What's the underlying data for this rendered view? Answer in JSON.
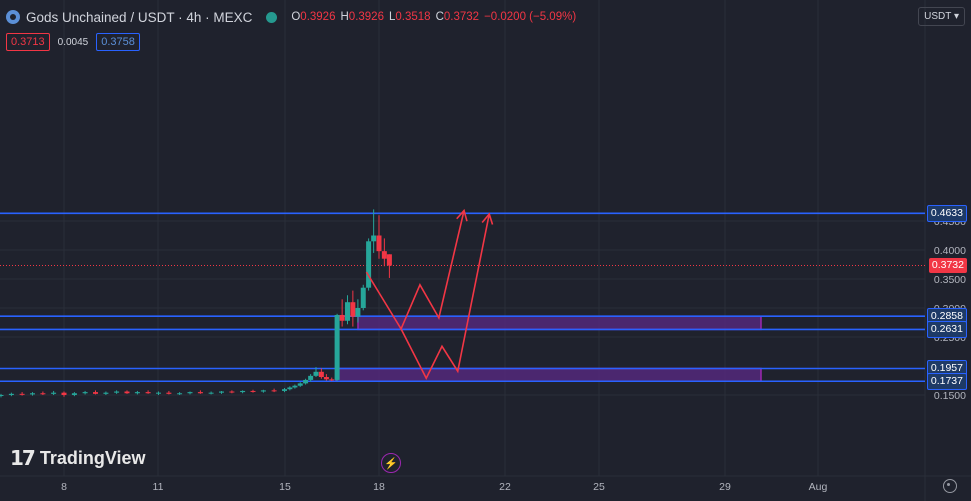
{
  "header": {
    "title": "Gods Unchained / USDT · 4h · MEXC",
    "ohlc": [
      {
        "k": "O",
        "v": "0.3926"
      },
      {
        "k": "H",
        "v": "0.3926"
      },
      {
        "k": "L",
        "v": "0.3518"
      },
      {
        "k": "C",
        "v": "0.3732"
      }
    ],
    "change": "−0.0200 (−5.09%)",
    "bid": "0.3713",
    "spread": "0.0045",
    "ask": "0.3758",
    "currency": "USDT"
  },
  "branding": {
    "logo_text": "TradingView"
  },
  "colors": {
    "background": "#1f222d",
    "up": "#26a69a",
    "down": "#f23645",
    "level_line": "#2962ff",
    "zone_fill": "#5b2a86",
    "arrow": "#f23645"
  },
  "chart_data": {
    "type": "candlestick",
    "symbol": "Gods Unchained / USDT",
    "interval": "4h",
    "exchange": "MEXC",
    "x_ticks": [
      "8",
      "11",
      "15",
      "18",
      "22",
      "25",
      "29",
      "Aug"
    ],
    "y_ticks": [
      "0.1500",
      "0.2500",
      "0.3000",
      "0.3500",
      "0.4000",
      "0.4500"
    ],
    "ylim": [
      0.12,
      0.49
    ],
    "last_price": 0.3732,
    "horizontal_levels": [
      0.4633,
      0.2858,
      0.2631,
      0.1957,
      0.1737
    ],
    "level_labels": [
      "0.4633",
      "0.2858",
      "0.2631",
      "0.1957",
      "0.1737"
    ],
    "last_price_label": "0.3732",
    "zones": [
      {
        "top": 0.2858,
        "bottom": 0.2631
      },
      {
        "top": 0.1957,
        "bottom": 0.1737
      }
    ],
    "projection_paths": [
      [
        [
          17.6,
          0.362
        ],
        [
          18.7,
          0.264
        ],
        [
          19.3,
          0.34
        ],
        [
          19.9,
          0.283
        ],
        [
          20.7,
          0.468
        ]
      ],
      [
        [
          18.7,
          0.264
        ],
        [
          19.5,
          0.179
        ],
        [
          20.0,
          0.234
        ],
        [
          20.5,
          0.191
        ],
        [
          21.5,
          0.462
        ]
      ]
    ],
    "candles": [
      {
        "d": 5.0,
        "o": 0.143,
        "h": 0.146,
        "l": 0.139,
        "c": 0.145
      },
      {
        "d": 5.33,
        "o": 0.145,
        "h": 0.149,
        "l": 0.142,
        "c": 0.147
      },
      {
        "d": 5.67,
        "o": 0.147,
        "h": 0.151,
        "l": 0.145,
        "c": 0.149
      },
      {
        "d": 6.0,
        "o": 0.149,
        "h": 0.152,
        "l": 0.146,
        "c": 0.15
      },
      {
        "d": 6.33,
        "o": 0.15,
        "h": 0.154,
        "l": 0.148,
        "c": 0.152
      },
      {
        "d": 6.67,
        "o": 0.152,
        "h": 0.155,
        "l": 0.149,
        "c": 0.151
      },
      {
        "d": 7.0,
        "o": 0.151,
        "h": 0.155,
        "l": 0.149,
        "c": 0.153
      },
      {
        "d": 7.33,
        "o": 0.153,
        "h": 0.156,
        "l": 0.15,
        "c": 0.152
      },
      {
        "d": 7.67,
        "o": 0.152,
        "h": 0.157,
        "l": 0.15,
        "c": 0.154
      },
      {
        "d": 8.0,
        "o": 0.154,
        "h": 0.156,
        "l": 0.147,
        "c": 0.15
      },
      {
        "d": 8.33,
        "o": 0.15,
        "h": 0.155,
        "l": 0.148,
        "c": 0.153
      },
      {
        "d": 8.67,
        "o": 0.153,
        "h": 0.157,
        "l": 0.151,
        "c": 0.155
      },
      {
        "d": 9.0,
        "o": 0.155,
        "h": 0.158,
        "l": 0.151,
        "c": 0.152
      },
      {
        "d": 9.33,
        "o": 0.152,
        "h": 0.156,
        "l": 0.15,
        "c": 0.154
      },
      {
        "d": 9.67,
        "o": 0.154,
        "h": 0.158,
        "l": 0.152,
        "c": 0.156
      },
      {
        "d": 10.0,
        "o": 0.156,
        "h": 0.158,
        "l": 0.152,
        "c": 0.153
      },
      {
        "d": 10.33,
        "o": 0.153,
        "h": 0.157,
        "l": 0.151,
        "c": 0.155
      },
      {
        "d": 10.67,
        "o": 0.155,
        "h": 0.158,
        "l": 0.152,
        "c": 0.153
      },
      {
        "d": 11.0,
        "o": 0.153,
        "h": 0.156,
        "l": 0.15,
        "c": 0.154
      },
      {
        "d": 11.33,
        "o": 0.154,
        "h": 0.157,
        "l": 0.151,
        "c": 0.152
      },
      {
        "d": 11.67,
        "o": 0.152,
        "h": 0.155,
        "l": 0.15,
        "c": 0.153
      },
      {
        "d": 12.0,
        "o": 0.153,
        "h": 0.156,
        "l": 0.151,
        "c": 0.155
      },
      {
        "d": 12.33,
        "o": 0.155,
        "h": 0.158,
        "l": 0.152,
        "c": 0.153
      },
      {
        "d": 12.67,
        "o": 0.153,
        "h": 0.156,
        "l": 0.151,
        "c": 0.154
      },
      {
        "d": 13.0,
        "o": 0.154,
        "h": 0.157,
        "l": 0.152,
        "c": 0.156
      },
      {
        "d": 13.33,
        "o": 0.156,
        "h": 0.158,
        "l": 0.153,
        "c": 0.155
      },
      {
        "d": 13.67,
        "o": 0.155,
        "h": 0.158,
        "l": 0.153,
        "c": 0.157
      },
      {
        "d": 14.0,
        "o": 0.157,
        "h": 0.159,
        "l": 0.154,
        "c": 0.156
      },
      {
        "d": 14.33,
        "o": 0.156,
        "h": 0.159,
        "l": 0.154,
        "c": 0.158
      },
      {
        "d": 14.67,
        "o": 0.158,
        "h": 0.161,
        "l": 0.155,
        "c": 0.157
      },
      {
        "d": 15.0,
        "o": 0.157,
        "h": 0.162,
        "l": 0.155,
        "c": 0.16
      },
      {
        "d": 15.17,
        "o": 0.16,
        "h": 0.165,
        "l": 0.158,
        "c": 0.163
      },
      {
        "d": 15.33,
        "o": 0.163,
        "h": 0.168,
        "l": 0.161,
        "c": 0.166
      },
      {
        "d": 15.5,
        "o": 0.166,
        "h": 0.172,
        "l": 0.164,
        "c": 0.17
      },
      {
        "d": 15.67,
        "o": 0.17,
        "h": 0.178,
        "l": 0.168,
        "c": 0.176
      },
      {
        "d": 15.83,
        "o": 0.176,
        "h": 0.186,
        "l": 0.173,
        "c": 0.183
      },
      {
        "d": 16.0,
        "o": 0.183,
        "h": 0.198,
        "l": 0.181,
        "c": 0.19
      },
      {
        "d": 16.17,
        "o": 0.19,
        "h": 0.196,
        "l": 0.178,
        "c": 0.181
      },
      {
        "d": 16.33,
        "o": 0.181,
        "h": 0.186,
        "l": 0.175,
        "c": 0.177
      },
      {
        "d": 16.5,
        "o": 0.177,
        "h": 0.18,
        "l": 0.174,
        "c": 0.176
      },
      {
        "d": 16.67,
        "o": 0.176,
        "h": 0.29,
        "l": 0.174,
        "c": 0.288
      },
      {
        "d": 16.83,
        "o": 0.288,
        "h": 0.315,
        "l": 0.268,
        "c": 0.278
      },
      {
        "d": 17.0,
        "o": 0.278,
        "h": 0.322,
        "l": 0.272,
        "c": 0.31
      },
      {
        "d": 17.17,
        "o": 0.31,
        "h": 0.33,
        "l": 0.268,
        "c": 0.285
      },
      {
        "d": 17.33,
        "o": 0.285,
        "h": 0.315,
        "l": 0.275,
        "c": 0.3
      },
      {
        "d": 17.5,
        "o": 0.3,
        "h": 0.34,
        "l": 0.296,
        "c": 0.335
      },
      {
        "d": 17.67,
        "o": 0.335,
        "h": 0.42,
        "l": 0.33,
        "c": 0.415
      },
      {
        "d": 17.83,
        "o": 0.415,
        "h": 0.47,
        "l": 0.395,
        "c": 0.425
      },
      {
        "d": 18.0,
        "o": 0.425,
        "h": 0.46,
        "l": 0.385,
        "c": 0.398
      },
      {
        "d": 18.17,
        "o": 0.398,
        "h": 0.42,
        "l": 0.372,
        "c": 0.385
      },
      {
        "d": 18.33,
        "o": 0.3926,
        "h": 0.3926,
        "l": 0.3518,
        "c": 0.3732
      }
    ]
  }
}
